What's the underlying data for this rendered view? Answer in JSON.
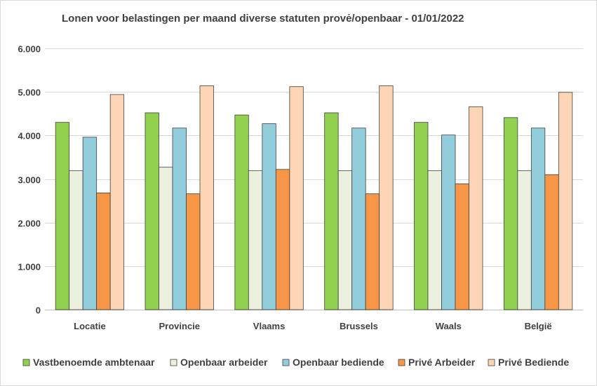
{
  "chart_data": {
    "type": "bar",
    "title": "Lonen voor belastingen per maand diverse statuten provė/openbaar - 01/01/2022",
    "xlabel": "",
    "ylabel": "",
    "ylim": [
      0,
      6000
    ],
    "yticks": [
      0,
      1000,
      2000,
      3000,
      4000,
      5000,
      6000
    ],
    "ytick_labels": [
      "0",
      "1.000",
      "2.000",
      "3.000",
      "4.000",
      "5.000",
      "6.000"
    ],
    "grid": true,
    "legend_position": "bottom",
    "categories": [
      "Locatie",
      "Provincie",
      "Vlaams",
      "Brussels",
      "Waals",
      "België"
    ],
    "series": [
      {
        "name": "Vastbenoemde ambtenaar",
        "color": "#92d050",
        "values": [
          4300,
          4520,
          4470,
          4520,
          4300,
          4410
        ]
      },
      {
        "name": "Openbaar arbeider",
        "color": "#ebf1de",
        "values": [
          3190,
          3270,
          3190,
          3190,
          3190,
          3190
        ]
      },
      {
        "name": "Openbaar bediende",
        "color": "#92cddc",
        "values": [
          3960,
          4170,
          4270,
          4170,
          4010,
          4170
        ]
      },
      {
        "name": "Privé Arbeider",
        "color": "#f79646",
        "values": [
          2680,
          2660,
          3220,
          2660,
          2890,
          3100
        ]
      },
      {
        "name": "Privé Bediende",
        "color": "#fcd5b4",
        "values": [
          4940,
          5140,
          5120,
          5140,
          4660,
          4990
        ]
      }
    ]
  }
}
